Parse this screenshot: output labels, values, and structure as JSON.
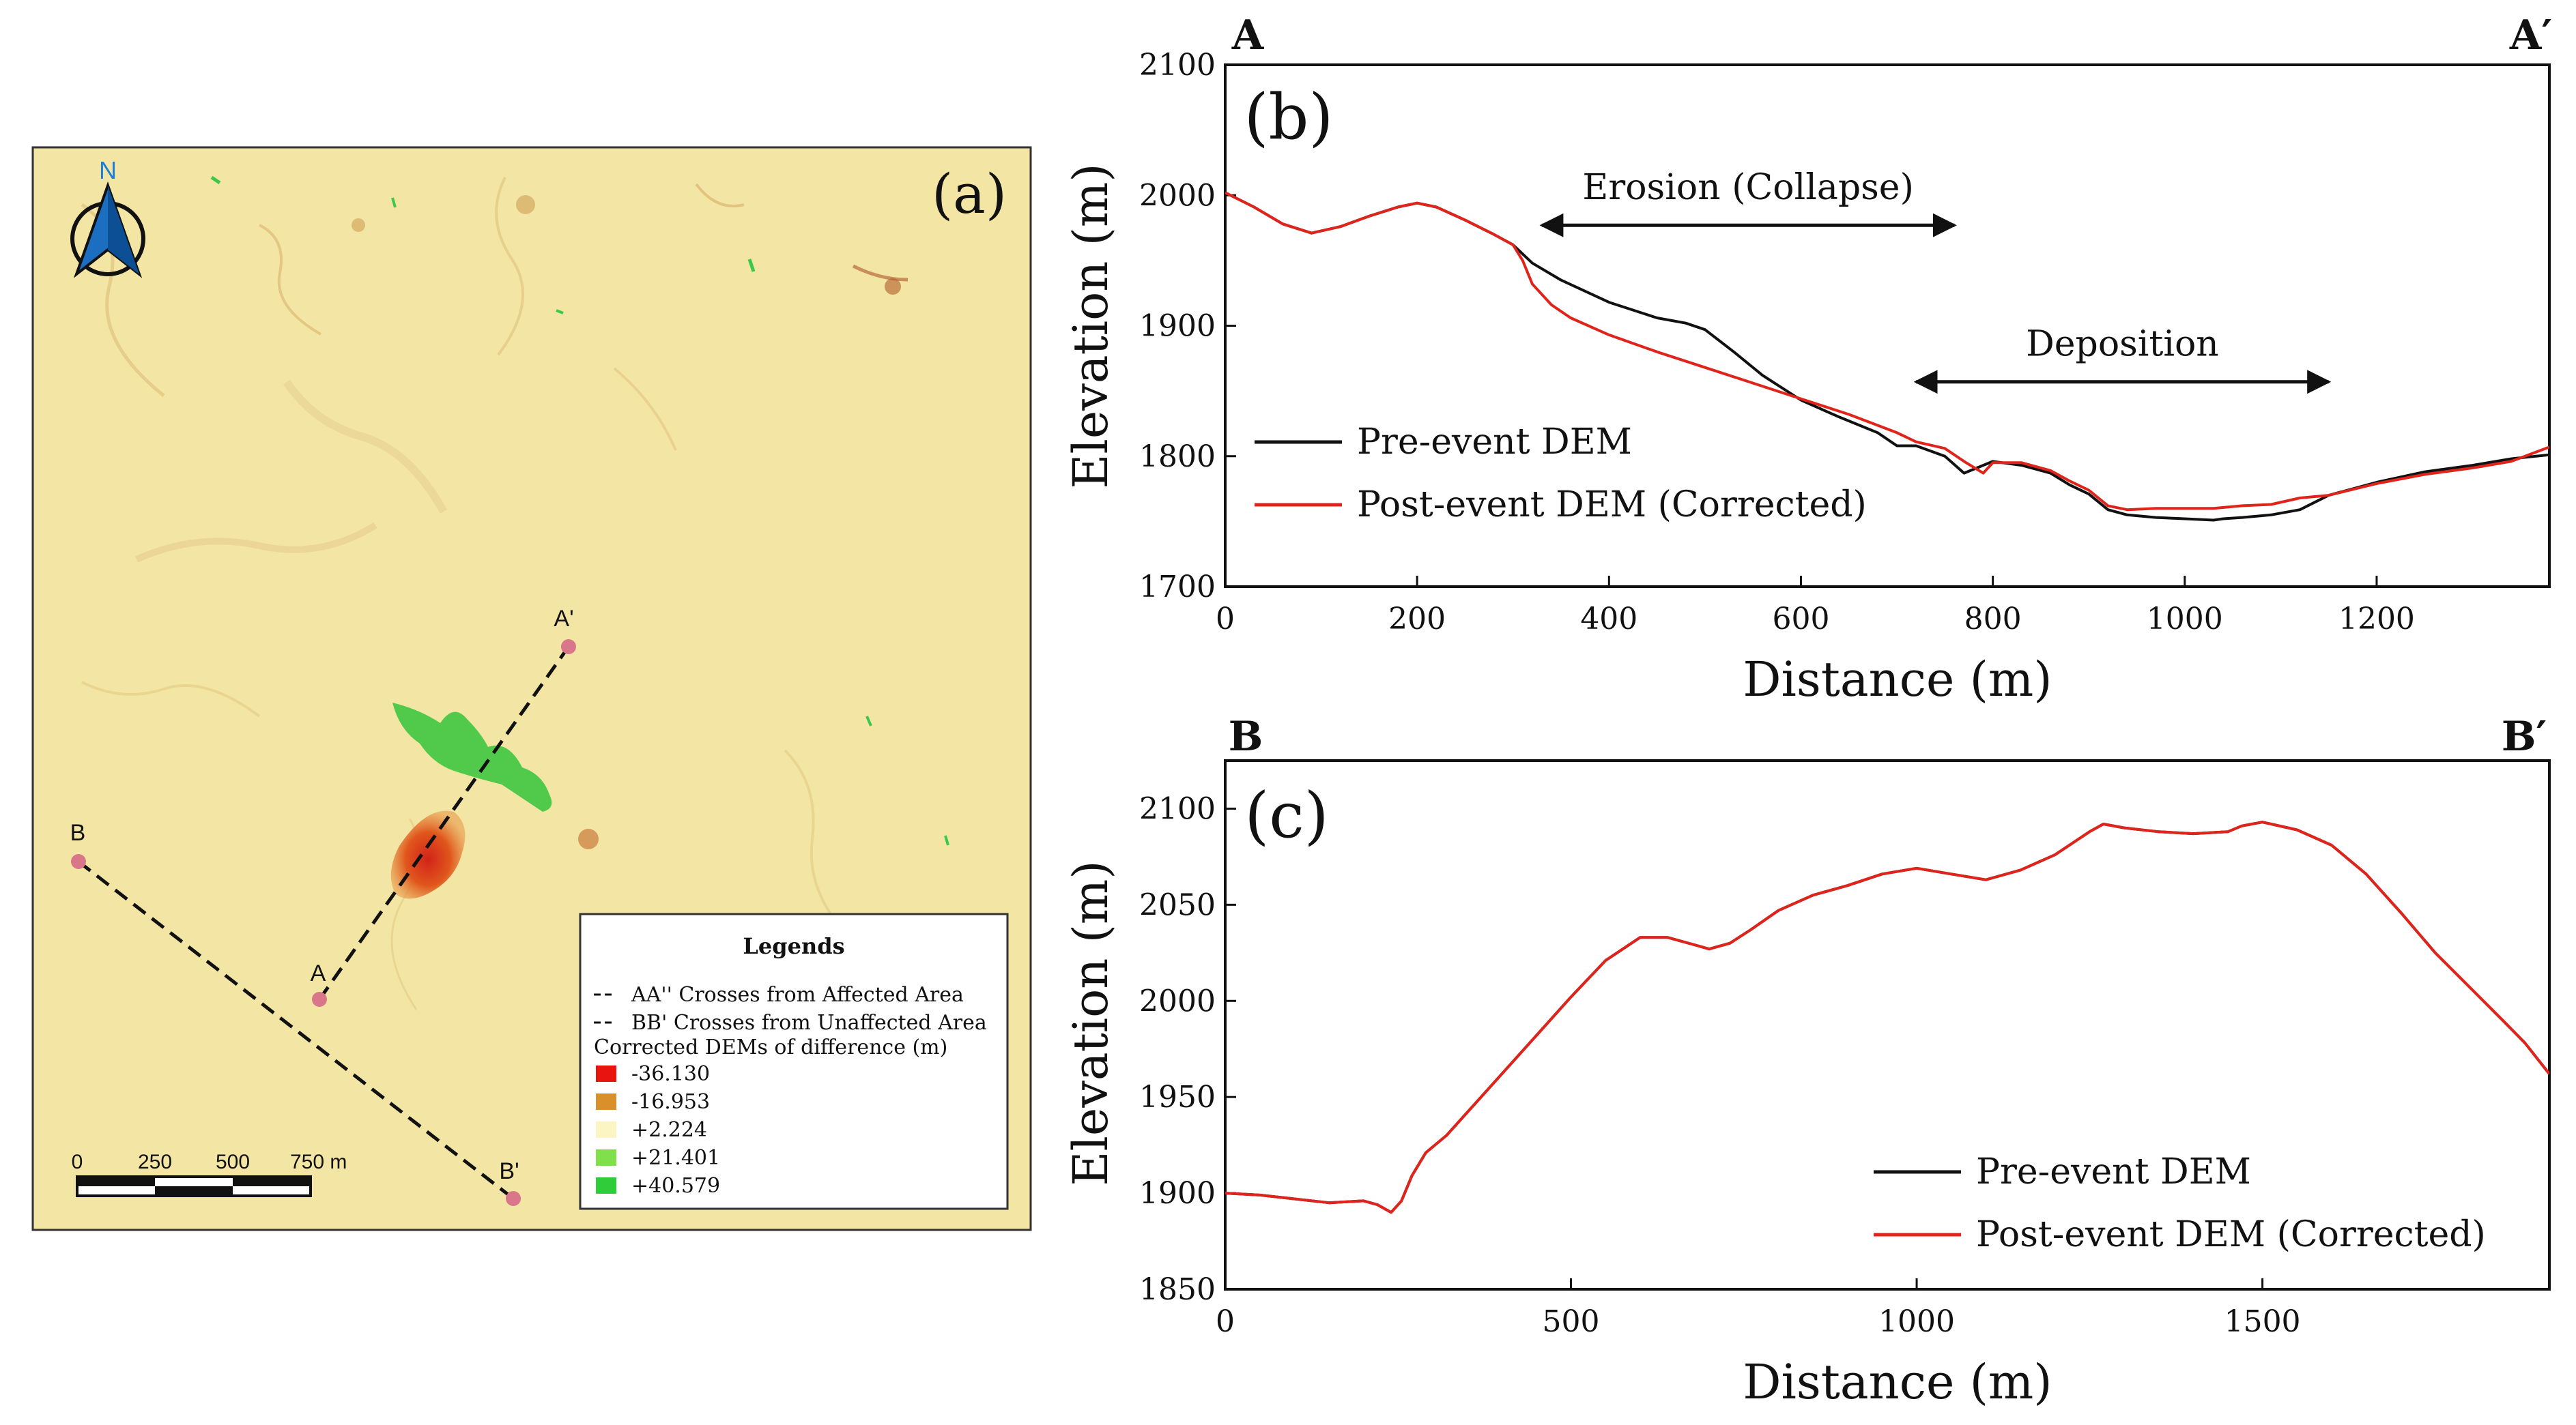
{
  "panel_a": {
    "label": "(a)",
    "north_label": "N",
    "points": [
      {
        "id": "A",
        "label": "A"
      },
      {
        "id": "A_prime",
        "label": "A'"
      },
      {
        "id": "B",
        "label": "B"
      },
      {
        "id": "B_prime",
        "label": "B'"
      }
    ],
    "scale_bar": {
      "ticks": [
        "0",
        "250",
        "500",
        "750 m"
      ]
    },
    "legend": {
      "title": "Legends",
      "line_items": [
        "AA'' Crosses from Affected Area",
        "BB' Crosses from Unaffected Area"
      ],
      "ramp_title": "Corrected DEMs of difference (m)",
      "ramp_items": [
        {
          "label": "-36.130",
          "color": "#e8150e"
        },
        {
          "label": "-16.953",
          "color": "#d98f2a"
        },
        {
          "label": "+2.224",
          "color": "#fbf5c4"
        },
        {
          "label": "+21.401",
          "color": "#7fe04b"
        },
        {
          "label": "+40.579",
          "color": "#2fcd3a"
        }
      ]
    },
    "colors": {
      "background": "#f3e6a4",
      "point": "#d9768a",
      "frame": "#333333"
    }
  },
  "chart_data": [
    {
      "id": "b",
      "type": "line",
      "panel_label": "(b)",
      "start_label": "A",
      "end_label": "A′",
      "title": "",
      "xlabel": "Distance (m)",
      "ylabel": "Elevation (m)",
      "xlim": [
        0,
        1380
      ],
      "ylim": [
        1700,
        2100
      ],
      "xticks": [
        0,
        200,
        400,
        600,
        800,
        1000,
        1200
      ],
      "yticks": [
        1700,
        1800,
        1900,
        2000,
        2100
      ],
      "legend_position": "bottom-left",
      "annotations": [
        {
          "text": "Erosion (Collapse)",
          "x_from": 330,
          "x_to": 760,
          "y": 1977
        },
        {
          "text": "Deposition",
          "x_from": 720,
          "x_to": 1150,
          "y": 1857
        }
      ],
      "series": [
        {
          "name": "Pre-event DEM",
          "color": "#111111",
          "x": [
            0,
            30,
            60,
            90,
            120,
            150,
            180,
            200,
            220,
            250,
            280,
            300,
            320,
            350,
            400,
            450,
            480,
            500,
            530,
            560,
            600,
            640,
            680,
            700,
            720,
            750,
            770,
            790,
            800,
            830,
            860,
            880,
            900,
            920,
            940,
            970,
            1000,
            1030,
            1040,
            1060,
            1090,
            1120,
            1150,
            1200,
            1250,
            1300,
            1340,
            1380
          ],
          "y": [
            2002,
            1991,
            1978,
            1971,
            1976,
            1984,
            1991,
            1994,
            1991,
            1981,
            1970,
            1962,
            1948,
            1935,
            1918,
            1906,
            1902,
            1897,
            1880,
            1862,
            1843,
            1830,
            1818,
            1808,
            1808,
            1800,
            1787,
            1793,
            1796,
            1793,
            1787,
            1778,
            1771,
            1759,
            1755,
            1753,
            1752,
            1751,
            1752,
            1753,
            1755,
            1759,
            1770,
            1780,
            1788,
            1793,
            1798,
            1801
          ]
        },
        {
          "name": "Post-event DEM (Corrected)",
          "color": "#e0241b",
          "x": [
            0,
            30,
            60,
            90,
            120,
            150,
            180,
            200,
            220,
            250,
            280,
            300,
            310,
            320,
            340,
            360,
            400,
            450,
            500,
            550,
            600,
            650,
            700,
            720,
            750,
            770,
            790,
            800,
            830,
            860,
            880,
            900,
            920,
            940,
            970,
            1000,
            1030,
            1060,
            1090,
            1120,
            1150,
            1200,
            1250,
            1300,
            1340,
            1380
          ],
          "y": [
            2002,
            1991,
            1978,
            1971,
            1976,
            1984,
            1991,
            1994,
            1991,
            1981,
            1970,
            1962,
            1950,
            1932,
            1916,
            1906,
            1893,
            1880,
            1868,
            1856,
            1844,
            1832,
            1818,
            1811,
            1806,
            1796,
            1787,
            1795,
            1795,
            1789,
            1781,
            1774,
            1762,
            1759,
            1760,
            1760,
            1760,
            1762,
            1763,
            1768,
            1770,
            1779,
            1786,
            1791,
            1796,
            1807
          ]
        }
      ]
    },
    {
      "id": "c",
      "type": "line",
      "panel_label": "(c)",
      "start_label": "B",
      "end_label": "B′",
      "title": "",
      "xlabel": "Distance (m)",
      "ylabel": "Elevation (m)",
      "xlim": [
        0,
        1915
      ],
      "ylim": [
        1850,
        2125
      ],
      "xticks": [
        0,
        500,
        1000,
        1500
      ],
      "yticks": [
        1850,
        1900,
        1950,
        2000,
        2050,
        2100
      ],
      "legend_position": "bottom-right",
      "series": [
        {
          "name": "Pre-event DEM",
          "color": "#111111",
          "x": [
            0,
            50,
            100,
            150,
            200,
            220,
            240,
            255,
            270,
            290,
            320,
            360,
            400,
            450,
            500,
            550,
            600,
            640,
            680,
            700,
            730,
            760,
            800,
            850,
            900,
            950,
            1000,
            1050,
            1100,
            1150,
            1200,
            1250,
            1270,
            1300,
            1350,
            1400,
            1450,
            1470,
            1500,
            1550,
            1600,
            1650,
            1700,
            1750,
            1800,
            1850,
            1880,
            1915
          ],
          "y": [
            1900,
            1899,
            1897,
            1895,
            1896,
            1894,
            1890,
            1896,
            1909,
            1921,
            1930,
            1946,
            1962,
            1982,
            2002,
            2021,
            2033,
            2033,
            2029,
            2027,
            2030,
            2037,
            2047,
            2055,
            2060,
            2066,
            2069,
            2066,
            2063,
            2068,
            2076,
            2088,
            2092,
            2090,
            2088,
            2087,
            2088,
            2091,
            2093,
            2089,
            2081,
            2066,
            2046,
            2025,
            2007,
            1989,
            1978,
            1962
          ]
        },
        {
          "name": "Post-event DEM (Corrected)",
          "color": "#e0241b",
          "x": [
            0,
            50,
            100,
            150,
            200,
            220,
            240,
            255,
            270,
            290,
            320,
            360,
            400,
            450,
            500,
            550,
            600,
            640,
            680,
            700,
            730,
            760,
            800,
            850,
            900,
            950,
            1000,
            1050,
            1100,
            1150,
            1200,
            1250,
            1270,
            1300,
            1350,
            1400,
            1450,
            1470,
            1500,
            1550,
            1600,
            1650,
            1700,
            1750,
            1800,
            1850,
            1880,
            1915
          ],
          "y": [
            1900,
            1899,
            1897,
            1895,
            1896,
            1894,
            1890,
            1896,
            1909,
            1921,
            1930,
            1946,
            1962,
            1982,
            2002,
            2021,
            2033,
            2033,
            2029,
            2027,
            2030,
            2037,
            2047,
            2055,
            2060,
            2066,
            2069,
            2066,
            2063,
            2068,
            2076,
            2088,
            2092,
            2090,
            2088,
            2087,
            2088,
            2091,
            2093,
            2089,
            2081,
            2066,
            2046,
            2025,
            2007,
            1989,
            1978,
            1962
          ]
        }
      ]
    }
  ]
}
